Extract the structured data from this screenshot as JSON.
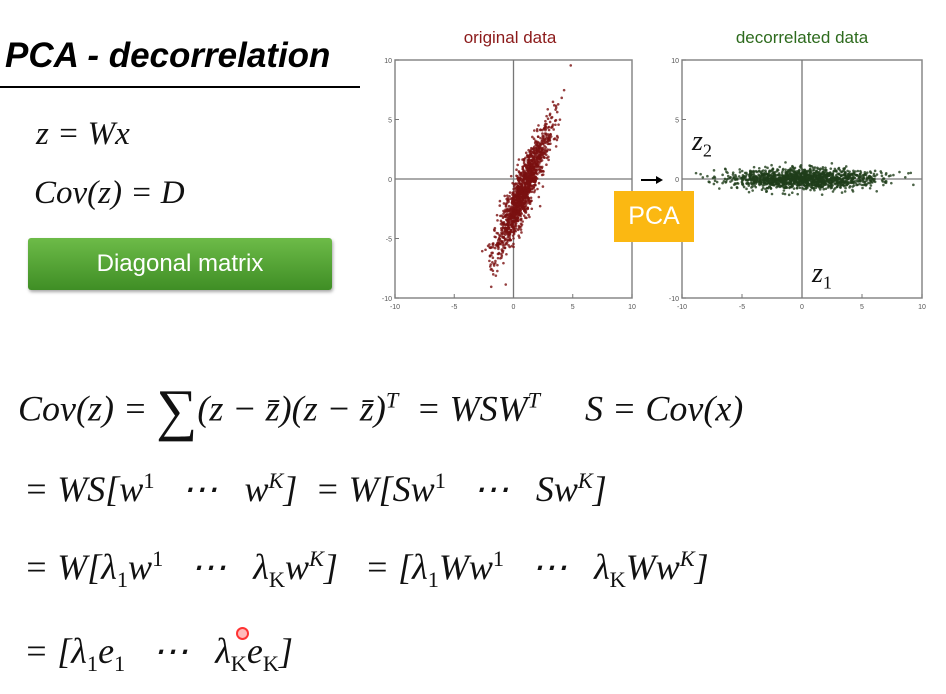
{
  "slide": {
    "title": "PCA - decorrelation",
    "eq_z": [
      {
        "t": "z = Wx"
      }
    ],
    "eq_cov": [
      {
        "t": "Cov"
      },
      {
        "t": "(z) = D"
      }
    ],
    "diagonal_button": "Diagonal matrix",
    "pca_label": "PCA",
    "z2_label": {
      "base": "z",
      "sub": "2"
    },
    "z1_label": {
      "base": "z",
      "sub": "1"
    },
    "colors": {
      "accent_green": "#4fa331",
      "pca_orange": "#fbb812",
      "original": "#7a1010",
      "decorrelated": "#1f3d1a"
    },
    "equations": [
      [
        {
          "t": "Cov(z) = "
        },
        {
          "t": "∑",
          "big": true
        },
        {
          "t": "(z − z̄)(z − z̄)"
        },
        {
          "t": "T",
          "sup": true
        },
        {
          "t": "  = WSW"
        },
        {
          "t": "T",
          "sup": true
        },
        {
          "t": "     S = Cov(x)"
        }
      ],
      [
        {
          "t": "= WS[w"
        },
        {
          "t": "1",
          "sup": true
        },
        {
          "t": "   ⋯   w"
        },
        {
          "t": "K",
          "sup": true
        },
        {
          "t": "]  = W[Sw"
        },
        {
          "t": "1",
          "sup": true
        },
        {
          "t": "   ⋯   Sw"
        },
        {
          "t": "K",
          "sup": true
        },
        {
          "t": "]"
        }
      ],
      [
        {
          "t": "= W[λ"
        },
        {
          "t": "1",
          "sub": true
        },
        {
          "t": "w"
        },
        {
          "t": "1",
          "sup": true
        },
        {
          "t": "   ⋯   λ"
        },
        {
          "t": "K",
          "sub": true
        },
        {
          "t": "w"
        },
        {
          "t": "K",
          "sup": true
        },
        {
          "t": "]   = [λ"
        },
        {
          "t": "1",
          "sub": true
        },
        {
          "t": "Ww"
        },
        {
          "t": "1",
          "sup": true
        },
        {
          "t": "   ⋯   λ"
        },
        {
          "t": "K",
          "sub": true
        },
        {
          "t": "Ww"
        },
        {
          "t": "K",
          "sup": true
        },
        {
          "t": "]"
        }
      ],
      [
        {
          "t": "= [λ"
        },
        {
          "t": "1",
          "sub": true
        },
        {
          "t": "e"
        },
        {
          "t": "1",
          "sub": true
        },
        {
          "t": "   ⋯   λ"
        },
        {
          "t": "K",
          "sub": true
        },
        {
          "t": "e"
        },
        {
          "t": "K",
          "sub": true
        },
        {
          "t": "]"
        }
      ]
    ]
  },
  "chart_data": [
    {
      "type": "scatter",
      "title": "original data",
      "title_color": "#8b1a1a",
      "point_color": "#7a1010",
      "xlim": [
        -10,
        10
      ],
      "ylim": [
        -10,
        10
      ],
      "xticks": [
        -10,
        -5,
        0,
        5,
        10
      ],
      "yticks": [
        -10,
        -5,
        0,
        5,
        10
      ],
      "shape": "elongated cloud along a positive slope (strongly correlated)",
      "axes_lines_at_zero": true,
      "grid": false
    },
    {
      "type": "scatter",
      "title": "decorrelated data",
      "title_color": "#2e6b1e",
      "point_color": "#1f3d1a",
      "xlim": [
        -10,
        10
      ],
      "ylim": [
        -10,
        10
      ],
      "xticks": [
        -10,
        -5,
        0,
        5,
        10
      ],
      "yticks": [
        -10,
        -5,
        0,
        5,
        10
      ],
      "shape": "horizontal cloud along z1 axis (uncorrelated)",
      "axes_lines_at_zero": true,
      "grid": false
    }
  ]
}
